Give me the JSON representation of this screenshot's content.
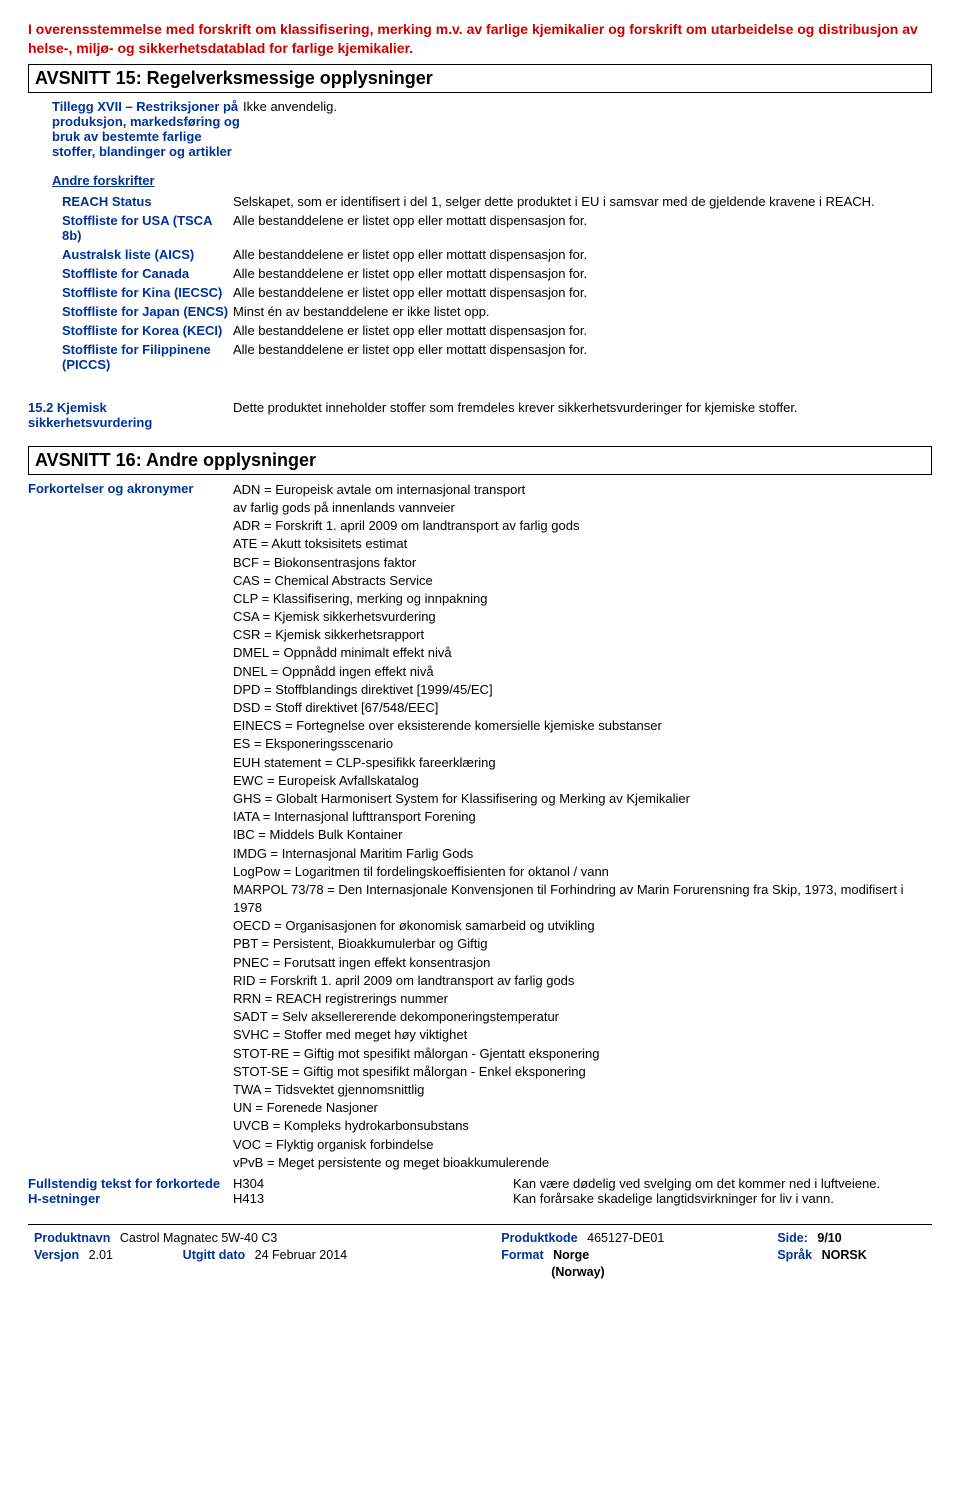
{
  "header": {
    "line1": "I overensstemmelse med forskrift om klassifisering, merking m.v. av farlige kjemikalier og forskrift om utarbeidelse og distribusjon av helse-, miljø- og sikkerhetsdatablad for farlige kjemikalier."
  },
  "section15": {
    "title": "AVSNITT 15: Regelverksmessige opplysninger",
    "tillegg_label": "Tillegg XVII – Restriksjoner på produksjon, markedsføring og bruk av bestemte farlige stoffer, blandinger og artikler",
    "tillegg_value": "Ikke anvendelig.",
    "andre_forskrifter": "Andre forskrifter",
    "rows": [
      {
        "label": "REACH Status",
        "value": "Selskapet, som er identifisert i del 1, selger dette produktet i EU i samsvar med de gjeldende kravene i REACH."
      },
      {
        "label": "Stoffliste for USA (TSCA 8b)",
        "value": "Alle bestanddelene er listet opp eller mottatt dispensasjon for."
      },
      {
        "label": "Australsk liste (AICS)",
        "value": "Alle bestanddelene er listet opp eller mottatt dispensasjon for."
      },
      {
        "label": "Stoffliste for Canada",
        "value": "Alle bestanddelene er listet opp eller mottatt dispensasjon for."
      },
      {
        "label": "Stoffliste for Kina (IECSC)",
        "value": "Alle bestanddelene er listet opp eller mottatt dispensasjon for."
      },
      {
        "label": "Stoffliste for Japan (ENCS)",
        "value": "Minst én av bestanddelene er ikke listet opp."
      },
      {
        "label": "Stoffliste for Korea (KECI)",
        "value": "Alle bestanddelene er listet opp eller mottatt dispensasjon for."
      },
      {
        "label": "Stoffliste for Filippinene (PICCS)",
        "value": "Alle bestanddelene er listet opp eller mottatt dispensasjon for."
      }
    ],
    "sec152_label": "15.2 Kjemisk sikkerhetsvurdering",
    "sec152_value": "Dette produktet inneholder stoffer som fremdeles krever sikkerhetsvurderinger for kjemiske stoffer."
  },
  "section16": {
    "title": "AVSNITT 16: Andre opplysninger",
    "abbrev_label": "Forkortelser og akronymer",
    "abbrev_lines": [
      "ADN = Europeisk avtale om internasjonal transport",
      " av farlig gods på innenlands vannveier",
      "ADR = Forskrift 1. april 2009 om landtransport av farlig gods",
      "ATE = Akutt toksisitets estimat",
      "BCF = Biokonsentrasjons faktor",
      "CAS = Chemical Abstracts Service",
      "CLP = Klassifisering, merking og innpakning",
      "CSA = Kjemisk sikkerhetsvurdering",
      "CSR = Kjemisk sikkerhetsrapport",
      "DMEL = Oppnådd minimalt effekt nivå",
      "DNEL = Oppnådd ingen effekt nivå",
      "DPD = Stoffblandings direktivet [1999/45/EC]",
      "DSD = Stoff direktivet [67/548/EEC]",
      "EINECS = Fortegnelse over eksisterende komersielle kjemiske substanser",
      "ES = Eksponeringsscenario",
      "EUH statement = CLP-spesifikk fareerklæring",
      "EWC = Europeisk Avfallskatalog",
      "GHS = Globalt Harmonisert System for Klassifisering og Merking av Kjemikalier",
      "IATA = Internasjonal lufttransport Forening",
      "IBC = Middels Bulk Kontainer",
      "IMDG = Internasjonal Maritim Farlig Gods",
      "LogPow = Logaritmen til fordelingskoeffisienten for oktanol / vann",
      "MARPOL 73/78 = Den Internasjonale Konvensjonen til Forhindring av Marin Forurensning fra Skip, 1973, modifisert i 1978",
      "OECD = Organisasjonen for økonomisk samarbeid og utvikling",
      "PBT = Persistent, Bioakkumulerbar og Giftig",
      "PNEC = Forutsatt ingen effekt konsentrasjon",
      "RID = Forskrift 1. april 2009 om landtransport av farlig gods",
      "RRN = REACH registrerings nummer",
      "SADT = Selv aksellererende dekomponeringstemperatur",
      "SVHC = Stoffer med meget høy viktighet",
      "STOT-RE = Giftig mot spesifikt målorgan - Gjentatt eksponering",
      "STOT-SE = Giftig mot spesifikt målorgan - Enkel eksponering",
      "TWA = Tidsvektet gjennomsnittlig",
      "UN = Forenede Nasjoner",
      "UVCB = Kompleks hydrokarbonsubstans",
      "VOC = Flyktig organisk forbindelse",
      "vPvB = Meget persistente og meget bioakkumulerende"
    ],
    "h_label": "Fullstendig tekst for forkortede H-setninger",
    "h_rows": [
      {
        "code": "H304",
        "text": "Kan være dødelig ved svelging om det kommer ned i luftveiene."
      },
      {
        "code": "H413",
        "text": "Kan forårsake skadelige langtidsvirkninger for liv i vann."
      }
    ]
  },
  "footer": {
    "produktnavn_label": "Produktnavn",
    "produktnavn": "Castrol Magnatec 5W-40 C3",
    "produktkode_label": "Produktkode",
    "produktkode": "465127-DE01",
    "side_label": "Side:",
    "side": "9/10",
    "versjon_label": "Versjon",
    "versjon": "2.01",
    "utgitt_label": "Utgitt dato",
    "utgitt": "24 Februar 2014",
    "format_label": "Format",
    "format": "Norge",
    "sprak_label": "Språk",
    "sprak": "NORSK",
    "format2": "(Norway)"
  }
}
